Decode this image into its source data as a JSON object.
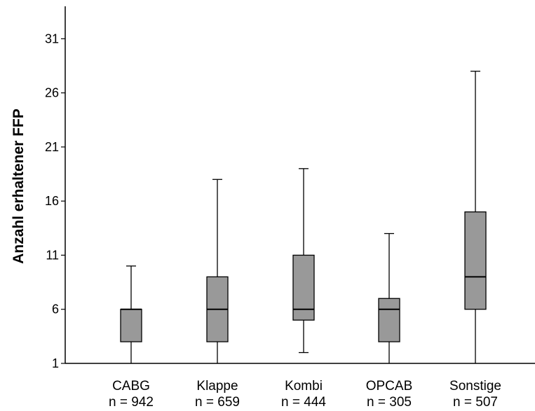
{
  "chart_data": {
    "type": "boxplot",
    "title": "",
    "xlabel": "",
    "ylabel": "Anzahl erhaltener FFP",
    "ylim": [
      1,
      34
    ],
    "yticks": [
      "1",
      "6",
      "11",
      "16",
      "21",
      "26",
      "31"
    ],
    "grid": false,
    "box_color": "#999999",
    "categories": [
      {
        "label": "CABG",
        "n_label": "n = 942",
        "whisker_low": 1,
        "q1": 3,
        "median": 6,
        "q3": 6,
        "whisker_high": 10
      },
      {
        "label": "Klappe",
        "n_label": "n = 659",
        "whisker_low": 1,
        "q1": 3,
        "median": 6,
        "q3": 9,
        "whisker_high": 18
      },
      {
        "label": "Kombi",
        "n_label": "n = 444",
        "whisker_low": 2,
        "q1": 5,
        "median": 6,
        "q3": 11,
        "whisker_high": 19
      },
      {
        "label": "OPCAB",
        "n_label": "n = 305",
        "whisker_low": 1,
        "q1": 3,
        "median": 6,
        "q3": 7,
        "whisker_high": 13
      },
      {
        "label": "Sonstige",
        "n_label": "n = 507",
        "whisker_low": 1,
        "q1": 6,
        "median": 9,
        "q3": 15,
        "whisker_high": 28
      }
    ]
  }
}
